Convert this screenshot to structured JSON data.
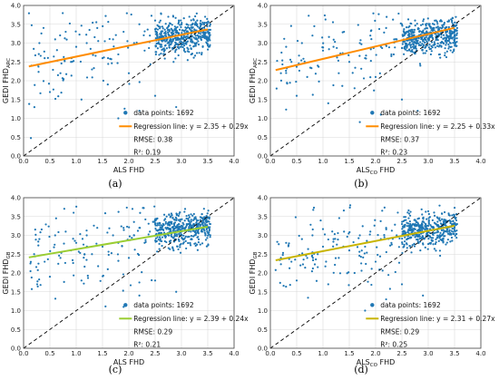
{
  "chart_data": [
    {
      "type": "scatter",
      "panel_caption": "(a)",
      "xlabel": "ALS FHD",
      "xlabel_sub": "",
      "ylabel": "GEDI FHD",
      "ylabel_sub": "ARC",
      "xlim": [
        0.0,
        4.0
      ],
      "ylim": [
        0.0,
        4.0
      ],
      "xticks": [
        "0.0",
        "0.5",
        "1.0",
        "1.5",
        "2.0",
        "2.5",
        "3.0",
        "3.5",
        "4.0"
      ],
      "yticks": [
        "0.0",
        "0.5",
        "1.0",
        "1.5",
        "2.0",
        "2.5",
        "3.0",
        "3.5",
        "4.0"
      ],
      "grid": true,
      "legend_position": "lower-right",
      "scatter_color": "#1f77b4",
      "line_color": "#ff8c00",
      "data_points_label": "data points: 1692",
      "regression_label": "Regression line: y = 2.35 + 0.29x",
      "rmse_label": "RMSE: 0.38",
      "r2_label": "R²: 0.19",
      "regression": {
        "intercept": 2.35,
        "slope": 0.29,
        "x_range": [
          0.1,
          3.5
        ]
      },
      "one_to_one_line": true,
      "series": [
        {
          "values": [
            [
              0.15,
              2.4
            ],
            [
              0.3,
              3.0
            ],
            [
              0.4,
              2.6
            ],
            [
              0.5,
              1.7
            ],
            [
              0.6,
              3.1
            ],
            [
              0.7,
              2.2
            ],
            [
              0.8,
              3.3
            ],
            [
              0.9,
              2.5
            ],
            [
              1.0,
              2.9
            ],
            [
              1.1,
              1.5
            ],
            [
              1.2,
              3.0
            ],
            [
              1.3,
              2.3
            ],
            [
              1.4,
              3.4
            ],
            [
              1.5,
              2.6
            ],
            [
              1.6,
              1.9
            ],
            [
              1.7,
              3.1
            ],
            [
              1.8,
              2.7
            ],
            [
              1.9,
              3.3
            ],
            [
              2.0,
              2.2
            ],
            [
              2.1,
              3.0
            ],
            [
              2.2,
              3.5
            ],
            [
              2.3,
              2.8
            ],
            [
              2.4,
              3.2
            ],
            [
              2.5,
              1.6
            ],
            [
              2.5,
              3.6
            ],
            [
              2.6,
              2.9
            ],
            [
              2.7,
              3.3
            ],
            [
              2.75,
              3.7
            ],
            [
              2.8,
              3.1
            ],
            [
              2.85,
              2.5
            ],
            [
              2.9,
              3.4
            ],
            [
              2.95,
              3.6
            ],
            [
              3.0,
              3.2
            ],
            [
              3.05,
              2.8
            ],
            [
              3.1,
              3.5
            ],
            [
              3.15,
              3.7
            ],
            [
              3.2,
              3.3
            ],
            [
              3.25,
              3.0
            ],
            [
              3.3,
              3.6
            ],
            [
              3.35,
              3.4
            ],
            [
              3.4,
              3.2
            ],
            [
              3.45,
              3.7
            ],
            [
              3.5,
              3.3
            ],
            [
              3.55,
              3.5
            ],
            [
              2.2,
              1.2
            ],
            [
              1.8,
              1.0
            ],
            [
              2.9,
              1.3
            ]
          ]
        }
      ]
    },
    {
      "type": "scatter",
      "panel_caption": "(b)",
      "xlabel": "ALS FHD",
      "xlabel_sub": "CO",
      "ylabel": "GEDI FHD",
      "ylabel_sub": "ARC",
      "xlim": [
        0.0,
        4.0
      ],
      "ylim": [
        0.0,
        4.0
      ],
      "xticks": [
        "0.0",
        "0.5",
        "1.0",
        "1.5",
        "2.0",
        "2.5",
        "3.0",
        "3.5",
        "4.0"
      ],
      "yticks": [
        "0.0",
        "0.5",
        "1.0",
        "1.5",
        "2.0",
        "2.5",
        "3.0",
        "3.5",
        "4.0"
      ],
      "grid": true,
      "legend_position": "lower-right",
      "scatter_color": "#1f77b4",
      "line_color": "#ff8c00",
      "data_points_label": "data points: 1692",
      "regression_label": "Regression line: y = 2.25 + 0.33x",
      "rmse_label": "RMSE: 0.37",
      "r2_label": "R²: 0.23",
      "regression": {
        "intercept": 2.25,
        "slope": 0.33,
        "x_range": [
          0.1,
          3.5
        ]
      },
      "one_to_one_line": true,
      "series": [
        {
          "values": [
            [
              0.2,
              2.2
            ],
            [
              0.3,
              2.9
            ],
            [
              0.4,
              2.5
            ],
            [
              0.5,
              1.6
            ],
            [
              0.6,
              3.0
            ],
            [
              0.7,
              2.1
            ],
            [
              0.8,
              3.2
            ],
            [
              0.9,
              2.4
            ],
            [
              1.0,
              2.8
            ],
            [
              1.1,
              1.4
            ],
            [
              1.2,
              2.9
            ],
            [
              1.3,
              2.2
            ],
            [
              1.4,
              3.3
            ],
            [
              1.5,
              2.5
            ],
            [
              1.6,
              1.8
            ],
            [
              1.7,
              3.0
            ],
            [
              1.8,
              2.6
            ],
            [
              1.9,
              3.2
            ],
            [
              2.0,
              2.1
            ],
            [
              2.1,
              2.9
            ],
            [
              2.2,
              3.4
            ],
            [
              2.3,
              2.7
            ],
            [
              2.4,
              3.1
            ],
            [
              2.5,
              1.5
            ],
            [
              2.5,
              3.5
            ],
            [
              2.6,
              2.8
            ],
            [
              2.7,
              3.2
            ],
            [
              2.75,
              3.6
            ],
            [
              2.8,
              3.0
            ],
            [
              2.85,
              2.4
            ],
            [
              2.9,
              3.3
            ],
            [
              2.95,
              3.5
            ],
            [
              3.0,
              3.1
            ],
            [
              3.05,
              2.7
            ],
            [
              3.1,
              3.4
            ],
            [
              3.15,
              3.6
            ],
            [
              3.2,
              3.2
            ],
            [
              3.25,
              2.9
            ],
            [
              3.3,
              3.5
            ],
            [
              3.35,
              3.3
            ],
            [
              3.4,
              3.1
            ],
            [
              3.45,
              3.6
            ],
            [
              3.5,
              3.2
            ],
            [
              3.55,
              3.4
            ],
            [
              2.1,
              1.1
            ],
            [
              1.7,
              0.9
            ],
            [
              2.8,
              1.2
            ]
          ]
        }
      ]
    },
    {
      "type": "scatter",
      "panel_caption": "(c)",
      "xlabel": "ALS FHD",
      "xlabel_sub": "",
      "ylabel": "GEDI FHD",
      "ylabel_sub": "GB",
      "xlim": [
        0.0,
        4.0
      ],
      "ylim": [
        0.0,
        4.0
      ],
      "xticks": [
        "0.0",
        "0.5",
        "1.0",
        "1.5",
        "2.0",
        "2.5",
        "3.0",
        "3.5",
        "4.0"
      ],
      "yticks": [
        "0.0",
        "0.5",
        "1.0",
        "1.5",
        "2.0",
        "2.5",
        "3.0",
        "3.5",
        "4.0"
      ],
      "grid": true,
      "legend_position": "lower-right",
      "scatter_color": "#1f77b4",
      "line_color": "#9acd32",
      "data_points_label": "data points: 1692",
      "regression_label": "Regression line: y = 2.39 + 0.24x",
      "rmse_label": "RMSE: 0.29",
      "r2_label": "R²: 0.21",
      "regression": {
        "intercept": 2.39,
        "slope": 0.24,
        "x_range": [
          0.1,
          3.5
        ]
      },
      "one_to_one_line": true,
      "series": [
        {
          "values": [
            [
              0.2,
              2.5
            ],
            [
              0.3,
              2.9
            ],
            [
              0.4,
              2.3
            ],
            [
              0.5,
              1.9
            ],
            [
              0.6,
              3.0
            ],
            [
              0.7,
              2.4
            ],
            [
              0.8,
              3.1
            ],
            [
              0.9,
              2.6
            ],
            [
              1.0,
              2.8
            ],
            [
              1.1,
              1.8
            ],
            [
              1.2,
              3.0
            ],
            [
              1.3,
              2.5
            ],
            [
              1.4,
              3.2
            ],
            [
              1.5,
              2.7
            ],
            [
              1.6,
              2.1
            ],
            [
              1.7,
              3.0
            ],
            [
              1.8,
              2.8
            ],
            [
              1.9,
              3.2
            ],
            [
              2.0,
              2.4
            ],
            [
              2.1,
              3.0
            ],
            [
              2.2,
              3.2
            ],
            [
              2.3,
              2.8
            ],
            [
              2.4,
              3.1
            ],
            [
              2.5,
              1.8
            ],
            [
              2.5,
              3.3
            ],
            [
              2.6,
              2.9
            ],
            [
              2.7,
              3.2
            ],
            [
              2.75,
              3.3
            ],
            [
              2.8,
              3.1
            ],
            [
              2.85,
              2.6
            ],
            [
              2.9,
              3.2
            ],
            [
              2.95,
              3.3
            ],
            [
              3.0,
              3.1
            ],
            [
              3.05,
              2.9
            ],
            [
              3.1,
              3.3
            ],
            [
              3.15,
              3.3
            ],
            [
              3.2,
              3.2
            ],
            [
              3.25,
              3.0
            ],
            [
              3.3,
              3.3
            ],
            [
              3.35,
              3.2
            ],
            [
              3.4,
              3.1
            ],
            [
              3.45,
              3.3
            ],
            [
              3.5,
              3.2
            ],
            [
              3.55,
              3.3
            ],
            [
              2.2,
              1.4
            ],
            [
              1.9,
              1.1
            ],
            [
              2.9,
              1.5
            ]
          ]
        }
      ]
    },
    {
      "type": "scatter",
      "panel_caption": "(d)",
      "xlabel": "ALS FHD",
      "xlabel_sub": "CO",
      "ylabel": "GEDI FHD",
      "ylabel_sub": "GB",
      "xlim": [
        0.0,
        4.0
      ],
      "ylim": [
        0.0,
        4.0
      ],
      "xticks": [
        "0.0",
        "0.5",
        "1.0",
        "1.5",
        "2.0",
        "2.5",
        "3.0",
        "3.5",
        "4.0"
      ],
      "yticks": [
        "0.0",
        "0.5",
        "1.0",
        "1.5",
        "2.0",
        "2.5",
        "3.0",
        "3.5",
        "4.0"
      ],
      "grid": true,
      "legend_position": "lower-right",
      "scatter_color": "#1f77b4",
      "line_color": "#c8b400",
      "data_points_label": "data points: 1692",
      "regression_label": "Regression line: y = 2.31 + 0.27x",
      "rmse_label": "RMSE: 0.29",
      "r2_label": "R²: 0.25",
      "regression": {
        "intercept": 2.31,
        "slope": 0.27,
        "x_range": [
          0.1,
          3.5
        ]
      },
      "one_to_one_line": true,
      "series": [
        {
          "values": [
            [
              0.2,
              2.4
            ],
            [
              0.3,
              2.8
            ],
            [
              0.4,
              2.3
            ],
            [
              0.5,
              1.8
            ],
            [
              0.6,
              2.9
            ],
            [
              0.7,
              2.4
            ],
            [
              0.8,
              3.0
            ],
            [
              0.9,
              2.5
            ],
            [
              1.0,
              2.7
            ],
            [
              1.1,
              1.7
            ],
            [
              1.2,
              2.9
            ],
            [
              1.3,
              2.4
            ],
            [
              1.4,
              3.1
            ],
            [
              1.5,
              2.6
            ],
            [
              1.6,
              2.0
            ],
            [
              1.7,
              3.0
            ],
            [
              1.8,
              2.7
            ],
            [
              1.9,
              3.1
            ],
            [
              2.0,
              2.3
            ],
            [
              2.1,
              2.9
            ],
            [
              2.2,
              3.2
            ],
            [
              2.3,
              2.8
            ],
            [
              2.4,
              3.0
            ],
            [
              2.5,
              1.7
            ],
            [
              2.5,
              3.3
            ],
            [
              2.6,
              2.9
            ],
            [
              2.7,
              3.1
            ],
            [
              2.75,
              3.3
            ],
            [
              2.8,
              3.0
            ],
            [
              2.85,
              2.6
            ],
            [
              2.9,
              3.2
            ],
            [
              2.95,
              3.3
            ],
            [
              3.0,
              3.1
            ],
            [
              3.05,
              2.8
            ],
            [
              3.1,
              3.2
            ],
            [
              3.15,
              3.3
            ],
            [
              3.2,
              3.2
            ],
            [
              3.25,
              3.0
            ],
            [
              3.3,
              3.3
            ],
            [
              3.35,
              3.2
            ],
            [
              3.4,
              3.1
            ],
            [
              3.45,
              3.3
            ],
            [
              3.5,
              3.2
            ],
            [
              3.55,
              3.3
            ],
            [
              2.2,
              1.3
            ],
            [
              1.8,
              1.0
            ],
            [
              2.9,
              1.4
            ]
          ]
        }
      ]
    }
  ]
}
